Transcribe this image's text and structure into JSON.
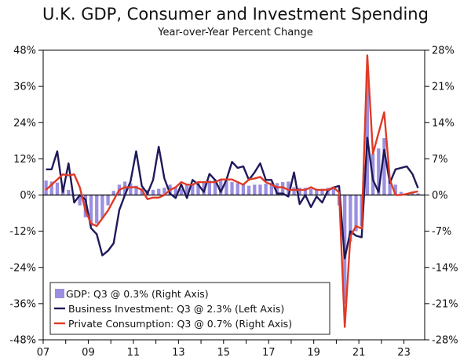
{
  "chart_data": {
    "type": "bar+line",
    "title": "U.K. GDP, Consumer and Investment Spending",
    "subtitle": "Year-over-Year Percent Change",
    "x_tick_labels": [
      "07",
      "09",
      "11",
      "13",
      "15",
      "17",
      "19",
      "21",
      "23"
    ],
    "left_axis": {
      "ticks": [
        "48%",
        "36%",
        "24%",
        "12%",
        "0%",
        "-12%",
        "-24%",
        "-36%",
        "-48%"
      ],
      "ylim": [
        -48,
        48
      ]
    },
    "right_axis": {
      "ticks": [
        "28%",
        "21%",
        "14%",
        "7%",
        "0%",
        "-7%",
        "-14%",
        "-21%",
        "-28%"
      ],
      "ylim": [
        -28,
        28
      ]
    },
    "x_range": [
      2007.0,
      2023.92
    ],
    "series": [
      {
        "name": "GDP: Q3 @ 0.3% (Right Axis)",
        "kind": "bar",
        "axis": "right",
        "color": "#9b8fe0",
        "x": [
          2007.0,
          2007.25,
          2007.5,
          2007.75,
          2008.0,
          2008.25,
          2008.5,
          2008.75,
          2009.0,
          2009.25,
          2009.5,
          2009.75,
          2010.0,
          2010.25,
          2010.5,
          2010.75,
          2011.0,
          2011.25,
          2011.5,
          2011.75,
          2012.0,
          2012.25,
          2012.5,
          2012.75,
          2013.0,
          2013.25,
          2013.5,
          2013.75,
          2014.0,
          2014.25,
          2014.5,
          2014.75,
          2015.0,
          2015.25,
          2015.5,
          2015.75,
          2016.0,
          2016.25,
          2016.5,
          2016.75,
          2017.0,
          2017.25,
          2017.5,
          2017.75,
          2018.0,
          2018.25,
          2018.5,
          2018.75,
          2019.0,
          2019.25,
          2019.5,
          2019.75,
          2020.0,
          2020.25,
          2020.5,
          2020.75,
          2021.0,
          2021.25,
          2021.5,
          2021.75,
          2022.0,
          2022.25,
          2022.5,
          2022.75,
          2023.0,
          2023.25,
          2023.5
        ],
        "values": [
          2.8,
          2.6,
          2.4,
          1.8,
          1.0,
          -0.2,
          -2.0,
          -4.3,
          -6.0,
          -5.5,
          -4.5,
          -2.0,
          0.8,
          2.0,
          2.6,
          2.3,
          1.8,
          1.3,
          1.0,
          1.0,
          1.2,
          1.4,
          2.0,
          1.4,
          1.2,
          2.0,
          2.0,
          2.3,
          2.5,
          2.8,
          3.0,
          3.1,
          2.8,
          2.5,
          2.3,
          2.0,
          1.8,
          2.0,
          2.0,
          2.2,
          2.4,
          2.3,
          2.5,
          2.6,
          1.5,
          1.4,
          1.4,
          1.2,
          1.0,
          1.2,
          1.4,
          1.2,
          -2.0,
          -21.0,
          -9.0,
          -7.0,
          -6.0,
          24.0,
          8.0,
          9.0,
          11.0,
          3.0,
          2.0,
          0.6,
          0.2,
          0.5,
          0.3
        ]
      },
      {
        "name": "Business Investment: Q3 @ 2.3% (Left Axis)",
        "kind": "line",
        "axis": "left",
        "color": "#1e1a5a",
        "x": [
          2007.0,
          2007.25,
          2007.5,
          2007.75,
          2008.0,
          2008.25,
          2008.5,
          2008.75,
          2009.0,
          2009.25,
          2009.5,
          2009.75,
          2010.0,
          2010.25,
          2010.5,
          2010.75,
          2011.0,
          2011.25,
          2011.5,
          2011.75,
          2012.0,
          2012.25,
          2012.5,
          2012.75,
          2013.0,
          2013.25,
          2013.5,
          2013.75,
          2014.0,
          2014.25,
          2014.5,
          2014.75,
          2015.0,
          2015.25,
          2015.5,
          2015.75,
          2016.0,
          2016.25,
          2016.5,
          2016.75,
          2017.0,
          2017.25,
          2017.5,
          2017.75,
          2018.0,
          2018.25,
          2018.5,
          2018.75,
          2019.0,
          2019.25,
          2019.5,
          2019.75,
          2020.0,
          2020.25,
          2020.5,
          2020.75,
          2021.0,
          2021.25,
          2021.5,
          2021.75,
          2022.0,
          2022.25,
          2022.5,
          2022.75,
          2023.0,
          2023.25,
          2023.5
        ],
        "values": [
          8.5,
          8.5,
          14.5,
          1.0,
          10.5,
          -2.5,
          0.0,
          -1.5,
          -11.0,
          -13.0,
          -20.0,
          -18.5,
          -16.0,
          -5.0,
          0.0,
          4.5,
          14.5,
          3.0,
          0.5,
          5.0,
          16.0,
          5.5,
          0.5,
          -1.0,
          3.5,
          -1.0,
          5.0,
          3.5,
          1.0,
          7.0,
          5.0,
          1.0,
          5.0,
          11.0,
          9.0,
          9.5,
          5.0,
          7.5,
          10.5,
          5.0,
          5.0,
          0.5,
          0.5,
          -0.5,
          7.5,
          -3.0,
          0.0,
          -4.0,
          -0.5,
          -2.5,
          1.5,
          2.5,
          3.0,
          -21.0,
          -12.0,
          -13.5,
          -14.0,
          19.0,
          5.0,
          1.0,
          15.0,
          4.0,
          8.5,
          9.0,
          9.5,
          7.0,
          2.3
        ]
      },
      {
        "name": "Private Consumption: Q3 @ 0.7% (Right Axis)",
        "kind": "line",
        "axis": "right",
        "color": "#e03a25",
        "x": [
          2007.0,
          2007.25,
          2007.5,
          2007.75,
          2008.0,
          2008.25,
          2008.5,
          2008.75,
          2009.0,
          2009.25,
          2009.5,
          2009.75,
          2010.0,
          2010.25,
          2010.5,
          2010.75,
          2011.0,
          2011.25,
          2011.5,
          2011.75,
          2012.0,
          2012.25,
          2012.5,
          2012.75,
          2013.0,
          2013.25,
          2013.5,
          2013.75,
          2014.0,
          2014.25,
          2014.5,
          2014.75,
          2015.0,
          2015.25,
          2015.5,
          2015.75,
          2016.0,
          2016.25,
          2016.5,
          2016.75,
          2017.0,
          2017.25,
          2017.5,
          2017.75,
          2018.0,
          2018.25,
          2018.5,
          2018.75,
          2019.0,
          2019.25,
          2019.5,
          2019.75,
          2020.0,
          2020.25,
          2020.5,
          2020.75,
          2021.0,
          2021.25,
          2021.5,
          2021.75,
          2022.0,
          2022.25,
          2022.5,
          2022.75,
          2023.0,
          2023.25,
          2023.5
        ],
        "values": [
          1.0,
          2.0,
          3.0,
          4.0,
          3.8,
          4.0,
          1.5,
          -3.0,
          -5.5,
          -6.0,
          -4.5,
          -3.0,
          -1.0,
          1.0,
          1.5,
          1.5,
          1.5,
          1.0,
          -0.8,
          -0.5,
          -0.5,
          0.0,
          1.0,
          1.5,
          2.5,
          2.0,
          2.0,
          2.5,
          2.5,
          2.5,
          2.5,
          3.0,
          3.0,
          3.0,
          2.5,
          2.0,
          3.0,
          3.2,
          3.5,
          2.5,
          2.0,
          1.5,
          1.5,
          1.0,
          1.0,
          1.0,
          1.0,
          1.5,
          1.0,
          1.0,
          1.0,
          1.5,
          0.5,
          -25.5,
          -8.0,
          -6.0,
          -6.5,
          27.0,
          8.0,
          12.0,
          16.0,
          3.0,
          0.0,
          0.0,
          0.2,
          0.5,
          0.7
        ]
      }
    ],
    "legend": {
      "placement": "bottom-left"
    }
  }
}
